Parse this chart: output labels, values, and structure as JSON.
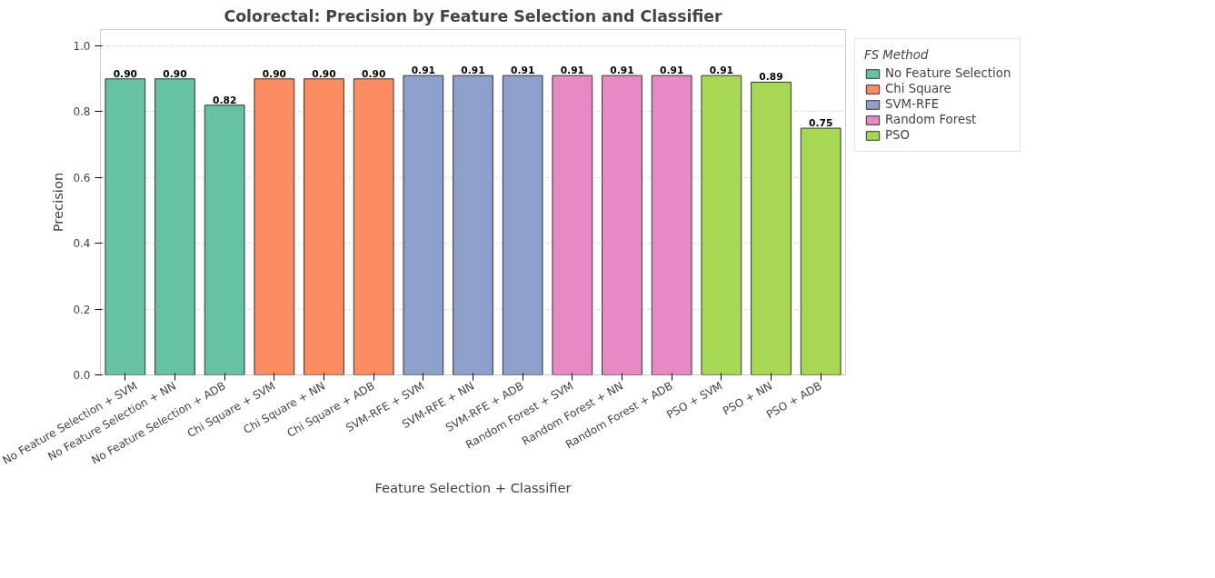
{
  "chart_data": {
    "type": "bar",
    "title": "Colorectal: Precision by Feature Selection and Classifier",
    "xlabel": "Feature Selection + Classifier",
    "ylabel": "Precision",
    "legend_title": "FS Method",
    "categories": [
      "No Feature Selection + SVM",
      "No Feature Selection + NN",
      "No Feature Selection + ADB",
      "Chi Square + SVM",
      "Chi Square + NN",
      "Chi Square + ADB",
      "SVM-RFE + SVM",
      "SVM-RFE + NN",
      "SVM-RFE + ADB",
      "Random Forest + SVM",
      "Random Forest + NN",
      "Random Forest + ADB",
      "PSO + SVM",
      "PSO + NN",
      "PSO + ADB"
    ],
    "series": [
      {
        "name": "No Feature Selection",
        "color": "#66c2a5",
        "values": [
          0.9,
          0.9,
          0.82,
          null,
          null,
          null,
          null,
          null,
          null,
          null,
          null,
          null,
          null,
          null,
          null
        ],
        "value_labels": [
          "0.90",
          "0.90",
          "0.82",
          null,
          null,
          null,
          null,
          null,
          null,
          null,
          null,
          null,
          null,
          null,
          null
        ]
      },
      {
        "name": "Chi Square",
        "color": "#fc8d62",
        "values": [
          null,
          null,
          null,
          0.9,
          0.9,
          0.9,
          null,
          null,
          null,
          null,
          null,
          null,
          null,
          null,
          null
        ],
        "value_labels": [
          null,
          null,
          null,
          "0.90",
          "0.90",
          "0.90",
          null,
          null,
          null,
          null,
          null,
          null,
          null,
          null,
          null
        ]
      },
      {
        "name": "SVM-RFE",
        "color": "#8da0cb",
        "values": [
          null,
          null,
          null,
          null,
          null,
          null,
          0.91,
          0.91,
          0.91,
          null,
          null,
          null,
          null,
          null,
          null
        ],
        "value_labels": [
          null,
          null,
          null,
          null,
          null,
          null,
          "0.91",
          "0.91",
          "0.91",
          null,
          null,
          null,
          null,
          null,
          null
        ]
      },
      {
        "name": "Random Forest",
        "color": "#e78ac3",
        "values": [
          null,
          null,
          null,
          null,
          null,
          null,
          null,
          null,
          null,
          0.91,
          0.91,
          0.91,
          null,
          null,
          null
        ],
        "value_labels": [
          null,
          null,
          null,
          null,
          null,
          null,
          null,
          null,
          null,
          "0.91",
          "0.91",
          "0.91",
          null,
          null,
          null
        ]
      },
      {
        "name": "PSO",
        "color": "#a6d854",
        "values": [
          null,
          null,
          null,
          null,
          null,
          null,
          null,
          null,
          null,
          null,
          null,
          null,
          0.91,
          0.89,
          0.75
        ],
        "value_labels": [
          null,
          null,
          null,
          null,
          null,
          null,
          null,
          null,
          null,
          null,
          null,
          null,
          "0.91",
          "0.89",
          "0.75"
        ]
      }
    ],
    "ylim": [
      0,
      1.05
    ],
    "yticks": [
      {
        "value": 0,
        "label": "0.0"
      },
      {
        "value": 0.2,
        "label": "0.2"
      },
      {
        "value": 0.4,
        "label": "0.4"
      },
      {
        "value": 0.6,
        "label": "0.6"
      },
      {
        "value": 0.8,
        "label": "0.8"
      },
      {
        "value": 1.0,
        "label": "1.0"
      }
    ],
    "grid": "y",
    "legend": "top right"
  }
}
